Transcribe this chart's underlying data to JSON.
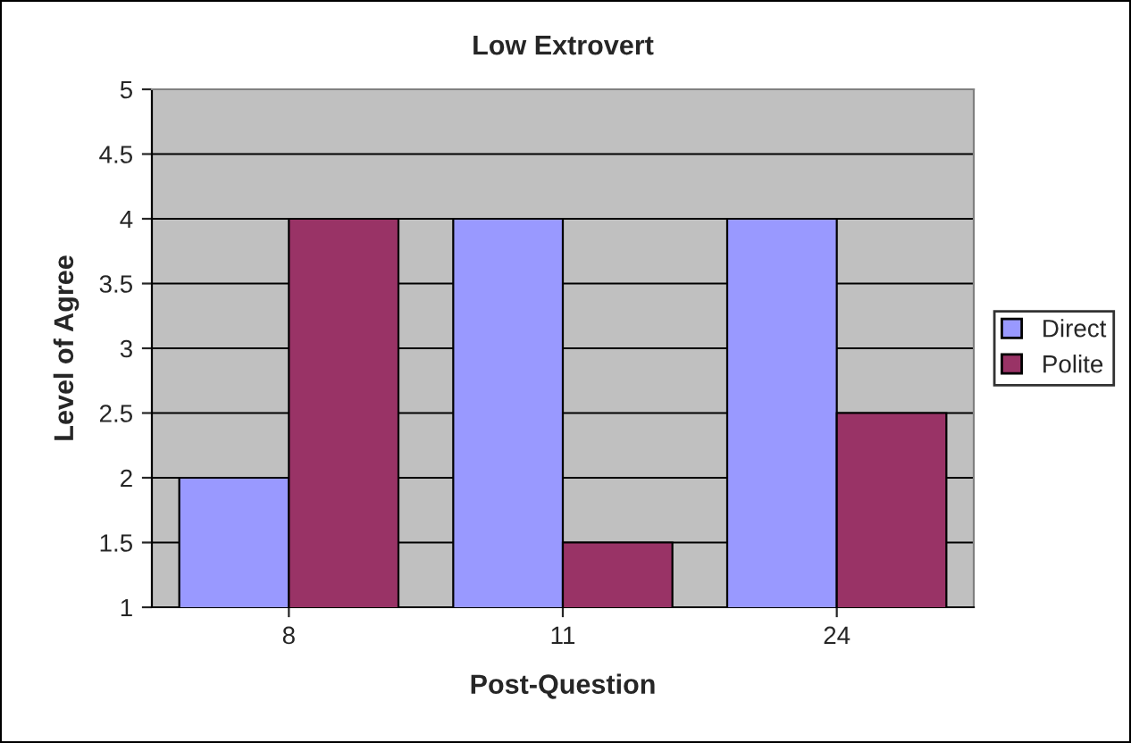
{
  "chart_data": {
    "type": "bar",
    "title": "Low Extrovert",
    "xlabel": "Post-Question",
    "ylabel": "Level of Agree",
    "categories": [
      "8",
      "11",
      "24"
    ],
    "series": [
      {
        "name": "Direct",
        "color": "#9999ff",
        "values": [
          2,
          4,
          4
        ]
      },
      {
        "name": "Polite",
        "color": "#993366",
        "values": [
          4,
          1.5,
          2.5
        ]
      }
    ],
    "ylim": [
      1,
      5
    ],
    "yticks": [
      1,
      1.5,
      2,
      2.5,
      3,
      3.5,
      4,
      4.5,
      5
    ],
    "grid": "y",
    "legend": "right"
  }
}
